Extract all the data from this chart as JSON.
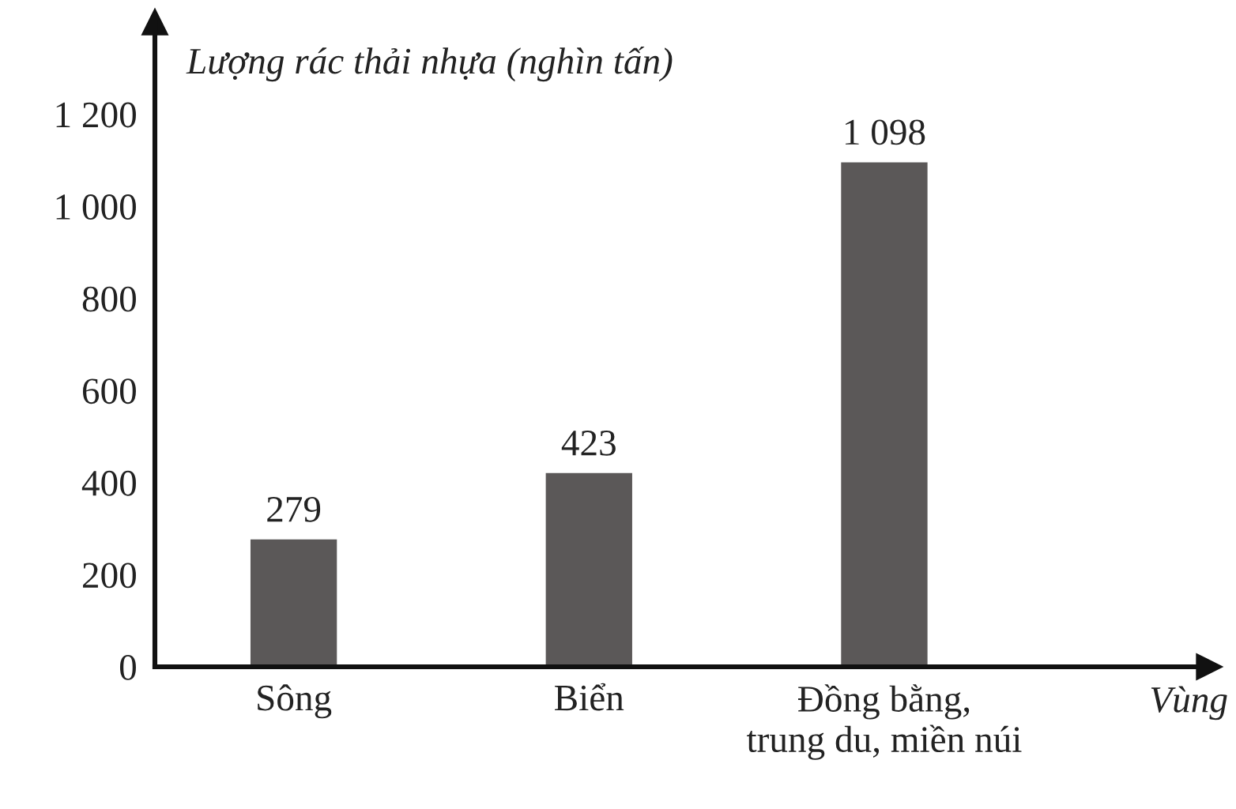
{
  "chart_data": {
    "type": "bar",
    "ylabel": "Lượng rác thải nhựa (nghìn tấn)",
    "xlabel": "Vùng",
    "categories": [
      "Sông",
      "Biển",
      "Đồng bằng,\ntrung du, miền núi"
    ],
    "values": [
      279,
      423,
      1098
    ],
    "color": "#5b5858",
    "value_labels": [
      "279",
      "423",
      "1 098"
    ],
    "ylim": [
      0,
      1400
    ],
    "yticks": [
      0,
      200,
      400,
      600,
      800,
      {
        "value": 1000,
        "label": "1 000"
      },
      {
        "value": 1200,
        "label": "1 200"
      }
    ],
    "grid": false,
    "legend": false
  }
}
